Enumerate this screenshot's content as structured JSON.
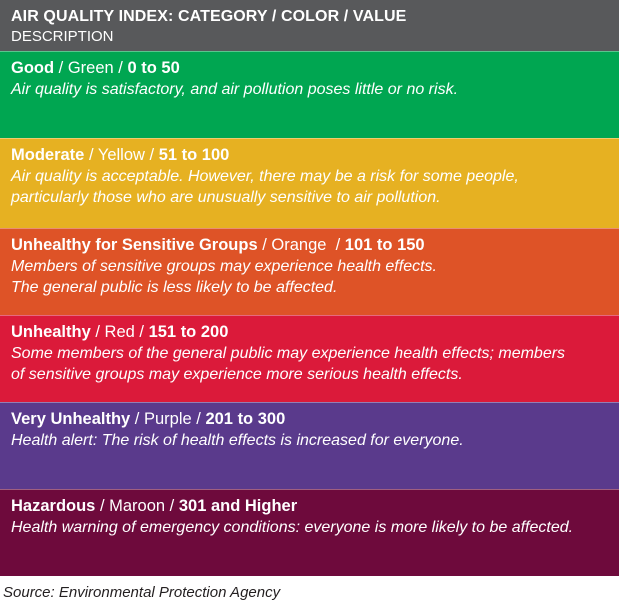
{
  "header": {
    "title": "AIR QUALITY INDEX: CATEGORY / COLOR / VALUE",
    "subtitle": "DESCRIPTION"
  },
  "rows": [
    {
      "category": "Good",
      "color_name": "Green",
      "value": "0 to 50",
      "bg": "#00a651",
      "desc": [
        "Air quality is satisfactory, and air pollution poses little or no risk."
      ]
    },
    {
      "category": "Moderate",
      "color_name": "Yellow",
      "value": "51 to 100",
      "bg": "#e6b122",
      "desc": [
        "Air quality is acceptable. However, there may be a risk for some people,",
        "particularly those who are unusually sensitive to air pollution."
      ]
    },
    {
      "category": "Unhealthy for Sensitive Groups",
      "color_name": "Orange",
      "value": "101 to 150",
      "bg": "#de5327",
      "desc": [
        "Members of sensitive groups may experience health effects.",
        "The general public is less likely to be affected."
      ]
    },
    {
      "category": "Unhealthy",
      "color_name": "Red",
      "value": "151 to 200",
      "bg": "#db1a3a",
      "desc": [
        "Some members of the general public may experience health effects; members",
        "of sensitive groups may experience more serious health effects."
      ]
    },
    {
      "category": "Very Unhealthy",
      "color_name": "Purple",
      "value": "201 to 300",
      "bg": "#5a3a8c",
      "desc": [
        "Health alert: The risk of health effects is increased for everyone."
      ]
    },
    {
      "category": "Hazardous",
      "color_name": "Maroon",
      "value": "301 and Higher",
      "bg": "#6e0a3c",
      "desc": [
        "Health warning of emergency conditions: everyone is more likely to be affected."
      ]
    }
  ],
  "source": "Source: Environmental Protection Agency",
  "colors": {
    "header_bg": "#58595b",
    "text": "#ffffff"
  }
}
